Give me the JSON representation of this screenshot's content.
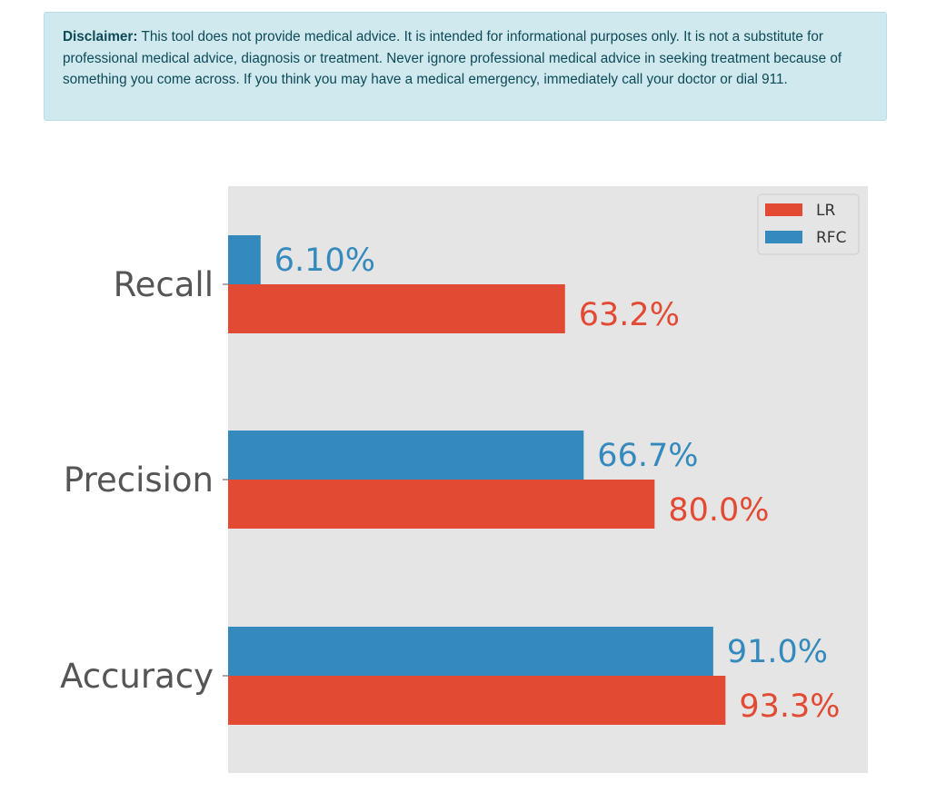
{
  "disclaimer": {
    "heading": "Disclaimer:",
    "text": "This tool does not provide medical advice. It is intended for informational purposes only. It is not a substitute for professional medical advice, diagnosis or treatment. Never ignore professional medical advice in seeking treatment because of something you come across. If you think you may have a medical emergency, immediately call your doctor or dial 911."
  },
  "chart_data": {
    "type": "bar",
    "orientation": "horizontal",
    "title": "",
    "xlabel": "",
    "ylabel": "",
    "categories": [
      "Recall",
      "Precision",
      "Accuracy"
    ],
    "series": [
      {
        "name": "LR",
        "color": "#e24a33",
        "values": [
          63.2,
          80.0,
          93.3
        ],
        "labels": [
          "63.2%",
          "80.0%",
          "93.3%"
        ]
      },
      {
        "name": "RFC",
        "color": "#348abd",
        "values": [
          6.1,
          66.7,
          91.0
        ],
        "labels": [
          "6.10%",
          "66.7%",
          "91.0%"
        ]
      }
    ],
    "xlim": [
      0,
      120
    ],
    "grid": false,
    "x_ticks_visible": false,
    "plot_background": "#e5e5e5",
    "legend_position": "top-right"
  }
}
